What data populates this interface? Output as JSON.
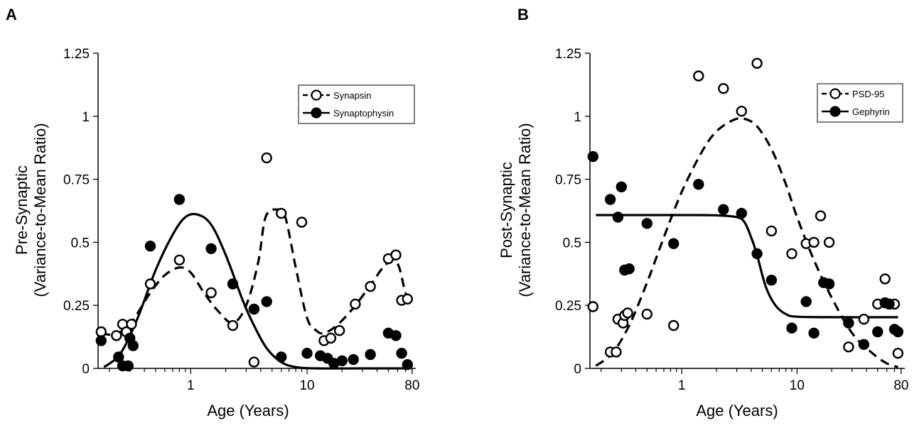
{
  "chart_data": [
    {
      "type": "scatter",
      "panel_label": "A",
      "xlabel": "Age (Years)",
      "ylabel_line1": "Pre-Synaptic",
      "ylabel_line2": "(Variance-to-Mean Ratio)",
      "x_scale": "log",
      "xlim": [
        0.16,
        86
      ],
      "ylim": [
        0,
        1.25
      ],
      "x_ticks": [
        {
          "value": 1,
          "label": "1"
        },
        {
          "value": 10,
          "label": "10"
        },
        {
          "value": 80,
          "label": "80"
        }
      ],
      "y_ticks": [
        {
          "value": 0,
          "label": "0"
        },
        {
          "value": 0.25,
          "label": "0.25"
        },
        {
          "value": 0.5,
          "label": "0.5"
        },
        {
          "value": 0.75,
          "label": "0.75"
        },
        {
          "value": 1,
          "label": "1"
        },
        {
          "value": 1.25,
          "label": "1.25"
        }
      ],
      "legend_position": "top-right",
      "series": [
        {
          "name": "Synapsin",
          "marker": "open-circle",
          "line": "dashed",
          "points": [
            [
              0.17,
              0.145
            ],
            [
              0.23,
              0.13
            ],
            [
              0.26,
              0.175
            ],
            [
              0.28,
              0.145
            ],
            [
              0.31,
              0.175
            ],
            [
              0.45,
              0.335
            ],
            [
              0.8,
              0.43
            ],
            [
              1.5,
              0.3
            ],
            [
              2.3,
              0.17
            ],
            [
              3.5,
              0.025
            ],
            [
              4.5,
              0.835
            ],
            [
              6,
              0.615
            ],
            [
              9,
              0.58
            ],
            [
              14,
              0.11
            ],
            [
              16,
              0.12
            ],
            [
              19,
              0.15
            ],
            [
              26,
              0.255
            ],
            [
              35,
              0.325
            ],
            [
              50,
              0.435
            ],
            [
              58,
              0.45
            ],
            [
              65,
              0.27
            ],
            [
              73,
              0.275
            ]
          ],
          "fit": [
            [
              0.17,
              0.14
            ],
            [
              0.22,
              0.135
            ],
            [
              0.3,
              0.175
            ],
            [
              0.45,
              0.3
            ],
            [
              0.6,
              0.37
            ],
            [
              0.8,
              0.4
            ],
            [
              1,
              0.38
            ],
            [
              1.3,
              0.3
            ],
            [
              1.7,
              0.23
            ],
            [
              2.3,
              0.18
            ],
            [
              3,
              0.25
            ],
            [
              3.8,
              0.42
            ],
            [
              4.4,
              0.6
            ],
            [
              5.5,
              0.63
            ],
            [
              6.5,
              0.6
            ],
            [
              8,
              0.4
            ],
            [
              10,
              0.2
            ],
            [
              12,
              0.15
            ],
            [
              14,
              0.14
            ],
            [
              18,
              0.17
            ],
            [
              25,
              0.24
            ],
            [
              35,
              0.33
            ],
            [
              45,
              0.4
            ],
            [
              55,
              0.43
            ],
            [
              62,
              0.4
            ],
            [
              70,
              0.3
            ],
            [
              77,
              0.27
            ]
          ]
        },
        {
          "name": "Synaptophysin",
          "marker": "filled-circle",
          "line": "solid",
          "points": [
            [
              0.17,
              0.11
            ],
            [
              0.24,
              0.045
            ],
            [
              0.26,
              0.01
            ],
            [
              0.29,
              0.01
            ],
            [
              0.3,
              0.12
            ],
            [
              0.32,
              0.09
            ],
            [
              0.45,
              0.485
            ],
            [
              0.8,
              0.67
            ],
            [
              1.5,
              0.475
            ],
            [
              2.3,
              0.335
            ],
            [
              3.5,
              0.235
            ],
            [
              4.5,
              0.265
            ],
            [
              6,
              0.045
            ],
            [
              10,
              0.06
            ],
            [
              13,
              0.05
            ],
            [
              15,
              0.04
            ],
            [
              17,
              0.02
            ],
            [
              20,
              0.03
            ],
            [
              25,
              0.035
            ],
            [
              35,
              0.055
            ],
            [
              50,
              0.14
            ],
            [
              58,
              0.13
            ],
            [
              65,
              0.06
            ],
            [
              73,
              0.015
            ]
          ],
          "fit": [
            [
              0.18,
              0.005
            ],
            [
              0.25,
              0.06
            ],
            [
              0.35,
              0.2
            ],
            [
              0.5,
              0.39
            ],
            [
              0.7,
              0.53
            ],
            [
              0.9,
              0.6
            ],
            [
              1.15,
              0.61
            ],
            [
              1.5,
              0.57
            ],
            [
              2,
              0.45
            ],
            [
              2.8,
              0.27
            ],
            [
              3.5,
              0.17
            ],
            [
              4.5,
              0.08
            ],
            [
              6,
              0.025
            ],
            [
              8,
              0.005
            ],
            [
              12,
              0
            ],
            [
              30,
              0
            ],
            [
              75,
              0
            ]
          ]
        }
      ]
    },
    {
      "type": "scatter",
      "panel_label": "B",
      "xlabel": "Age (Years)",
      "ylabel_line1": "Post-Synaptic",
      "ylabel_line2": "(Variance-to-Mean Ratio)",
      "x_scale": "log",
      "xlim": [
        0.16,
        86
      ],
      "ylim": [
        0,
        1.25
      ],
      "x_ticks": [
        {
          "value": 1,
          "label": "1"
        },
        {
          "value": 10,
          "label": "10"
        },
        {
          "value": 80,
          "label": "80"
        }
      ],
      "y_ticks": [
        {
          "value": 0,
          "label": "0"
        },
        {
          "value": 0.25,
          "label": "0.25"
        },
        {
          "value": 0.5,
          "label": "0.5"
        },
        {
          "value": 0.75,
          "label": "0.75"
        },
        {
          "value": 1,
          "label": "1"
        },
        {
          "value": 1.25,
          "label": "1.25"
        }
      ],
      "legend_position": "top-right",
      "series": [
        {
          "name": "PSD-95",
          "marker": "open-circle",
          "line": "dashed",
          "points": [
            [
              0.17,
              0.245
            ],
            [
              0.24,
              0.065
            ],
            [
              0.27,
              0.065
            ],
            [
              0.28,
              0.195
            ],
            [
              0.31,
              0.18
            ],
            [
              0.32,
              0.21
            ],
            [
              0.34,
              0.22
            ],
            [
              0.5,
              0.215
            ],
            [
              0.85,
              0.17
            ],
            [
              1.4,
              1.16
            ],
            [
              2.3,
              1.11
            ],
            [
              3.3,
              1.02
            ],
            [
              4.5,
              1.21
            ],
            [
              6,
              0.545
            ],
            [
              9,
              0.455
            ],
            [
              12,
              0.495
            ],
            [
              14,
              0.5
            ],
            [
              16,
              0.605
            ],
            [
              19,
              0.5
            ],
            [
              28,
              0.085
            ],
            [
              38,
              0.195
            ],
            [
              50,
              0.255
            ],
            [
              58,
              0.355
            ],
            [
              63,
              0.255
            ],
            [
              70,
              0.255
            ],
            [
              75,
              0.06
            ]
          ],
          "fit": [
            [
              0.18,
              0.01
            ],
            [
              0.25,
              0.06
            ],
            [
              0.35,
              0.17
            ],
            [
              0.5,
              0.34
            ],
            [
              0.7,
              0.52
            ],
            [
              1,
              0.7
            ],
            [
              1.5,
              0.86
            ],
            [
              2,
              0.94
            ],
            [
              2.8,
              0.985
            ],
            [
              3.5,
              0.99
            ],
            [
              4.5,
              0.96
            ],
            [
              6,
              0.87
            ],
            [
              8,
              0.73
            ],
            [
              10,
              0.6
            ],
            [
              14,
              0.43
            ],
            [
              20,
              0.28
            ],
            [
              30,
              0.14
            ],
            [
              45,
              0.06
            ],
            [
              60,
              0.02
            ],
            [
              75,
              0.005
            ]
          ]
        },
        {
          "name": "Gephyrin",
          "marker": "filled-circle",
          "line": "solid",
          "points": [
            [
              0.17,
              0.84
            ],
            [
              0.24,
              0.67
            ],
            [
              0.28,
              0.6
            ],
            [
              0.3,
              0.72
            ],
            [
              0.32,
              0.39
            ],
            [
              0.35,
              0.395
            ],
            [
              0.5,
              0.575
            ],
            [
              0.85,
              0.495
            ],
            [
              1.4,
              0.73
            ],
            [
              2.3,
              0.63
            ],
            [
              3.3,
              0.615
            ],
            [
              4.5,
              0.455
            ],
            [
              6,
              0.35
            ],
            [
              9,
              0.16
            ],
            [
              12,
              0.265
            ],
            [
              14,
              0.14
            ],
            [
              17,
              0.34
            ],
            [
              19,
              0.335
            ],
            [
              28,
              0.18
            ],
            [
              38,
              0.095
            ],
            [
              50,
              0.145
            ],
            [
              58,
              0.26
            ],
            [
              63,
              0.255
            ],
            [
              70,
              0.155
            ],
            [
              75,
              0.145
            ]
          ],
          "fit": [
            [
              0.18,
              0.608
            ],
            [
              1,
              0.608
            ],
            [
              2,
              0.607
            ],
            [
              3,
              0.6
            ],
            [
              3.5,
              0.58
            ],
            [
              4,
              0.52
            ],
            [
              4.5,
              0.45
            ],
            [
              5,
              0.37
            ],
            [
              5.5,
              0.31
            ],
            [
              6.5,
              0.25
            ],
            [
              8,
              0.215
            ],
            [
              10,
              0.205
            ],
            [
              20,
              0.203
            ],
            [
              75,
              0.203
            ]
          ]
        }
      ]
    }
  ]
}
